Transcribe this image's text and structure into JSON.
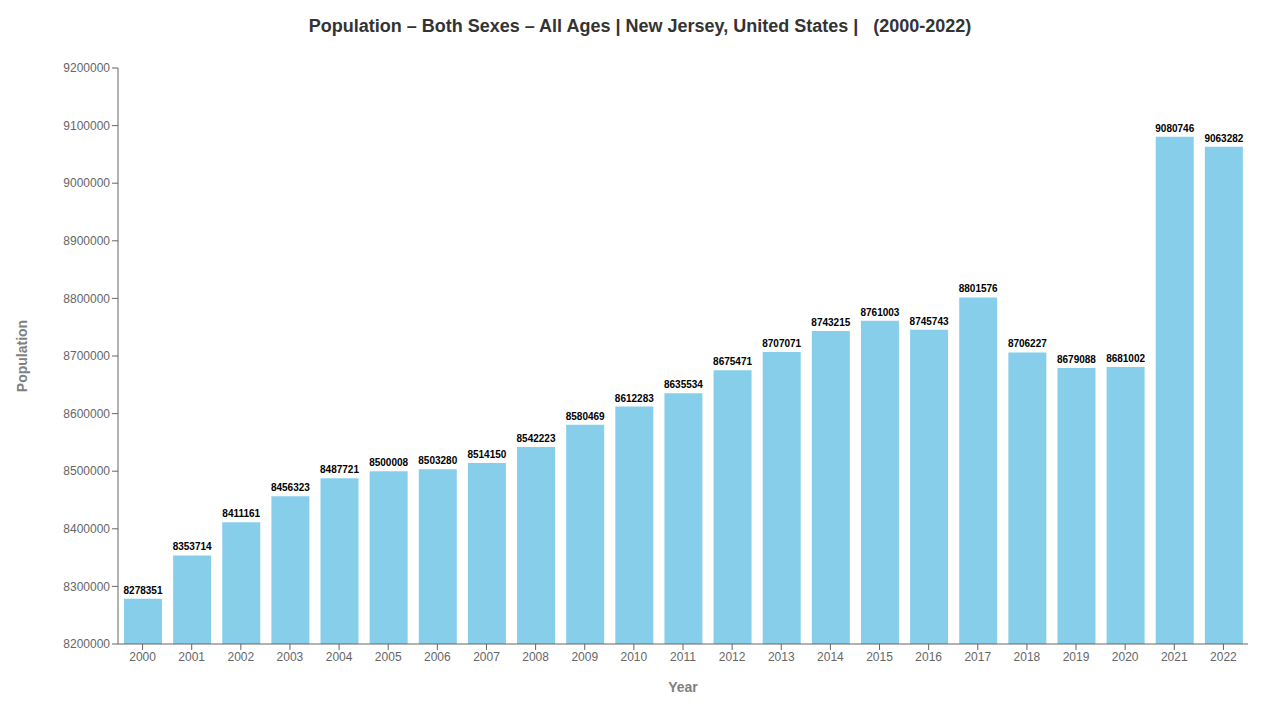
{
  "chart_data": {
    "type": "bar",
    "title": "Population – Both Sexes – All Ages | New Jersey, United States |   (2000-2022)",
    "xlabel": "Year",
    "ylabel": "Population",
    "categories": [
      "2000",
      "2001",
      "2002",
      "2003",
      "2004",
      "2005",
      "2006",
      "2007",
      "2008",
      "2009",
      "2010",
      "2011",
      "2012",
      "2013",
      "2014",
      "2015",
      "2016",
      "2017",
      "2018",
      "2019",
      "2020",
      "2021",
      "2022"
    ],
    "values": [
      8278351,
      8353714,
      8411161,
      8456323,
      8487721,
      8500008,
      8503280,
      8514150,
      8542223,
      8580469,
      8612283,
      8635534,
      8675471,
      8707071,
      8743215,
      8761003,
      8745743,
      8801576,
      8706227,
      8679088,
      8681002,
      9080746,
      9063282
    ],
    "color": "#87CEEB",
    "ylim": [
      8200000,
      9200000
    ],
    "yticks": [
      8200000,
      8300000,
      8400000,
      8500000,
      8600000,
      8700000,
      8800000,
      8900000,
      9000000,
      9100000,
      9200000
    ],
    "data_labels": true,
    "grid": false
  }
}
